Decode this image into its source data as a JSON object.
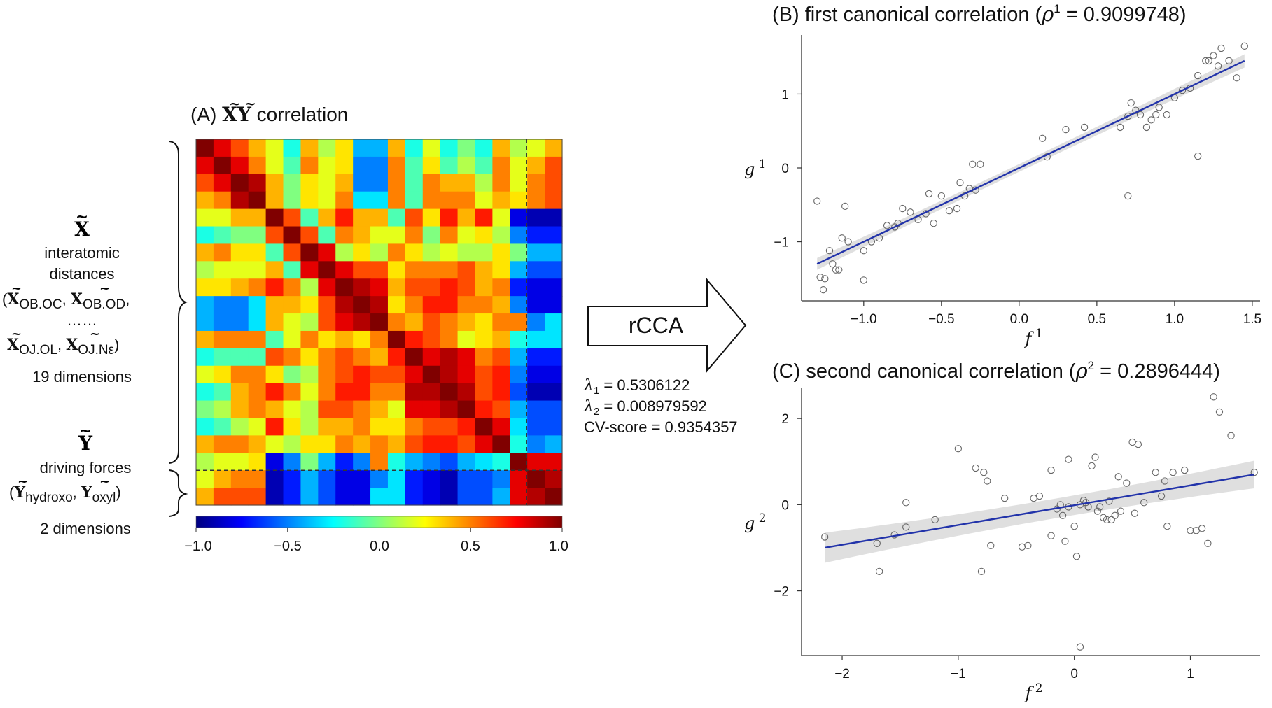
{
  "panel_a": {
    "title_prefix": "(A) ",
    "title_x": "X",
    "title_y": "Y",
    "title_suffix": " correlation",
    "x_block": {
      "symbol": "X",
      "line1": "interatomic",
      "line2": "distances",
      "l3_open": "(",
      "l3_x1": "X",
      "l3_sub1": "OB.OC",
      "l3_sep": ", ",
      "l3_x2": "X",
      "l3_sub2": "OB.OD",
      "l3_end": ",",
      "dots": "……",
      "l5_x1": "X",
      "l5_sub1": "OJ.OL",
      "l5_sep": ", ",
      "l5_x2": "X",
      "l5_sub2": "OJ.Nε",
      "l5_close": ")",
      "dims": "19 dimensions"
    },
    "y_block": {
      "symbol": "Y",
      "line1": "driving forces",
      "l2_open": "(",
      "l2_y1": "Y",
      "l2_sub1": "hydroxo",
      "l2_sep": ", ",
      "l2_y2": "Y",
      "l2_sub2": "oxyl",
      "l2_close": ")",
      "dims": "2 dimensions"
    },
    "colorbar_ticks": [
      "−1.0",
      "−0.5",
      "0.0",
      "0.5",
      "1.0"
    ]
  },
  "middle": {
    "arrow_label": "rCCA",
    "lambda1_sym": "λ",
    "lambda1_sub": "1",
    "lambda1_val": " = 0.5306122",
    "lambda2_sym": "λ",
    "lambda2_sub": "2",
    "lambda2_val": " = 0.008979592",
    "cv": "CV-score = 0.9354357"
  },
  "colors": {
    "fit_line": "#2233aa",
    "ci_band": "#d4d4d4",
    "points": "#666666",
    "axis": "#333333"
  },
  "chart_data": [
    {
      "type": "heatmap",
      "title": "(A) XY correlation",
      "rows": 21,
      "cols": 21,
      "divider_after": 19,
      "colormap": "jet",
      "colorbar_range": [
        -1.0,
        1.0
      ],
      "colorbar_ticks": [
        -1.0,
        -0.5,
        0.0,
        0.5,
        1.0
      ],
      "values": [
        [
          1.0,
          0.8,
          0.6,
          0.4,
          0.2,
          -0.2,
          0.4,
          0.1,
          0.3,
          -0.4,
          -0.4,
          0.4,
          -0.2,
          0.2,
          -0.2,
          0.0,
          -0.2,
          0.4,
          0.1,
          0.2,
          0.4
        ],
        [
          0.8,
          1.0,
          0.8,
          0.5,
          0.2,
          -0.1,
          0.5,
          0.2,
          0.3,
          -0.5,
          -0.5,
          0.5,
          -0.1,
          0.3,
          -0.1,
          0.1,
          -0.1,
          0.5,
          0.2,
          0.4,
          0.6
        ],
        [
          0.6,
          0.8,
          1.0,
          0.9,
          0.4,
          0.0,
          0.3,
          0.2,
          0.4,
          -0.5,
          -0.5,
          0.5,
          -0.1,
          0.5,
          0.4,
          0.4,
          0.1,
          0.5,
          0.2,
          0.5,
          0.6
        ],
        [
          0.4,
          0.5,
          0.9,
          1.0,
          0.4,
          0.0,
          0.3,
          0.2,
          0.5,
          -0.3,
          -0.3,
          0.5,
          -0.1,
          0.5,
          0.5,
          0.5,
          0.2,
          0.4,
          0.3,
          0.5,
          0.6
        ],
        [
          0.2,
          0.2,
          0.4,
          0.4,
          1.0,
          0.6,
          -0.1,
          0.4,
          0.7,
          0.4,
          0.4,
          -0.1,
          0.6,
          0.3,
          0.7,
          0.4,
          0.7,
          0.2,
          -0.8,
          -0.9,
          -0.9
        ],
        [
          -0.2,
          -0.1,
          0.0,
          0.0,
          0.6,
          1.0,
          0.6,
          -0.1,
          0.5,
          0.4,
          0.2,
          0.2,
          0.5,
          0.0,
          0.5,
          0.2,
          0.3,
          0.1,
          -0.5,
          -0.7,
          -0.7
        ],
        [
          0.4,
          0.5,
          0.3,
          0.3,
          -0.1,
          0.6,
          1.0,
          0.8,
          0.1,
          0.3,
          0.1,
          0.5,
          0.3,
          0.1,
          0.2,
          0.1,
          0.1,
          0.3,
          0.0,
          -0.4,
          -0.4
        ],
        [
          0.1,
          0.2,
          0.2,
          0.2,
          0.4,
          -0.1,
          0.8,
          1.0,
          0.8,
          0.6,
          0.6,
          0.3,
          0.5,
          0.5,
          0.5,
          0.6,
          0.4,
          0.3,
          -0.4,
          -0.6,
          -0.6
        ],
        [
          0.3,
          0.3,
          0.4,
          0.5,
          0.7,
          0.5,
          0.1,
          0.8,
          1.0,
          0.9,
          0.8,
          0.4,
          0.6,
          0.6,
          0.7,
          0.6,
          0.4,
          0.5,
          -0.7,
          -0.8,
          -0.8
        ],
        [
          -0.4,
          -0.5,
          -0.5,
          -0.3,
          0.4,
          0.4,
          0.3,
          0.6,
          0.9,
          1.0,
          0.9,
          0.3,
          0.5,
          0.7,
          0.7,
          0.5,
          0.5,
          0.4,
          -0.5,
          -0.8,
          -0.8
        ],
        [
          -0.4,
          -0.5,
          -0.5,
          -0.3,
          0.4,
          0.2,
          0.1,
          0.6,
          0.8,
          0.9,
          1.0,
          0.5,
          0.4,
          0.6,
          0.5,
          0.4,
          0.3,
          0.5,
          0.5,
          -0.5,
          -0.3
        ],
        [
          0.4,
          0.5,
          0.5,
          0.5,
          -0.1,
          0.2,
          0.5,
          0.3,
          0.4,
          0.3,
          0.5,
          1.0,
          0.7,
          0.6,
          0.5,
          0.2,
          0.3,
          0.4,
          -0.2,
          -0.3,
          -0.3
        ],
        [
          -0.2,
          -0.1,
          -0.1,
          -0.1,
          0.6,
          0.5,
          0.3,
          0.5,
          0.6,
          0.5,
          0.4,
          0.7,
          1.0,
          0.8,
          0.9,
          0.8,
          0.5,
          0.6,
          -0.4,
          -0.7,
          -0.7
        ],
        [
          0.2,
          0.3,
          0.5,
          0.5,
          0.3,
          0.0,
          0.1,
          0.5,
          0.6,
          0.7,
          0.6,
          0.6,
          0.8,
          1.0,
          0.9,
          0.8,
          0.6,
          0.7,
          -0.5,
          -0.8,
          -0.8
        ],
        [
          -0.2,
          -0.1,
          0.4,
          0.5,
          0.7,
          0.5,
          0.2,
          0.5,
          0.7,
          0.7,
          0.5,
          0.5,
          0.9,
          0.9,
          1.0,
          0.9,
          0.6,
          0.7,
          -0.6,
          -0.9,
          -0.9
        ],
        [
          0.0,
          0.1,
          0.4,
          0.5,
          0.4,
          0.2,
          0.1,
          0.6,
          0.6,
          0.5,
          0.4,
          0.2,
          0.8,
          0.8,
          0.9,
          1.0,
          0.7,
          0.6,
          -0.4,
          -0.6,
          -0.6
        ],
        [
          -0.2,
          -0.1,
          0.1,
          0.2,
          0.7,
          0.3,
          0.1,
          0.4,
          0.4,
          0.5,
          0.3,
          0.3,
          0.5,
          0.6,
          0.6,
          0.7,
          1.0,
          0.8,
          -0.3,
          -0.6,
          -0.6
        ],
        [
          0.4,
          0.5,
          0.5,
          0.4,
          0.2,
          0.1,
          0.3,
          0.3,
          0.5,
          0.4,
          0.5,
          0.4,
          0.6,
          0.7,
          0.7,
          0.6,
          0.8,
          1.0,
          -0.2,
          -0.5,
          -0.4
        ],
        [
          0.1,
          0.2,
          0.2,
          0.3,
          -0.8,
          -0.5,
          0.0,
          -0.4,
          -0.7,
          -0.5,
          0.5,
          -0.2,
          -0.4,
          -0.5,
          -0.6,
          -0.4,
          -0.3,
          -0.2,
          1.0,
          0.8,
          0.8
        ],
        [
          0.2,
          0.4,
          0.5,
          0.5,
          -0.9,
          -0.7,
          -0.4,
          -0.6,
          -0.8,
          -0.8,
          -0.5,
          -0.3,
          -0.7,
          -0.8,
          -0.9,
          -0.6,
          -0.6,
          -0.5,
          0.8,
          1.0,
          0.9
        ],
        [
          0.4,
          0.6,
          0.6,
          0.6,
          -0.9,
          -0.7,
          -0.4,
          -0.6,
          -0.8,
          -0.8,
          -0.3,
          -0.3,
          -0.7,
          -0.8,
          -0.9,
          -0.6,
          -0.6,
          -0.4,
          0.8,
          0.9,
          1.0
        ]
      ]
    },
    {
      "type": "scatter",
      "title": "(B) first canonical correlation (ρ¹ = 0.9099748)",
      "xlabel": "f¹",
      "ylabel": "g¹",
      "xlim": [
        -1.4,
        1.55
      ],
      "ylim": [
        -1.8,
        1.8
      ],
      "xticks": [
        -1.0,
        -0.5,
        0.0,
        0.5,
        1.0,
        1.5
      ],
      "yticks": [
        -1,
        0,
        1
      ],
      "fit": {
        "x0": -1.3,
        "y0": -1.3,
        "x1": 1.45,
        "y1": 1.45
      },
      "ci_halfwidth": [
        0.08,
        0.02,
        0.09
      ],
      "x": [
        -1.3,
        -1.28,
        -1.25,
        -1.26,
        -1.22,
        -1.2,
        -1.18,
        -1.16,
        -1.14,
        -1.12,
        -1.1,
        -1.0,
        -1.0,
        -0.95,
        -0.9,
        -0.85,
        -0.8,
        -0.78,
        -0.75,
        -0.7,
        -0.65,
        -0.6,
        -0.58,
        -0.55,
        -0.5,
        -0.45,
        -0.4,
        -0.38,
        -0.35,
        -0.32,
        -0.3,
        -0.28,
        -0.25,
        0.15,
        0.18,
        0.3,
        0.42,
        0.65,
        0.7,
        0.72,
        0.75,
        0.78,
        0.82,
        0.85,
        0.88,
        0.9,
        0.95,
        1.0,
        1.05,
        1.1,
        1.15,
        1.2,
        1.22,
        1.25,
        1.28,
        1.3,
        1.35,
        1.4,
        1.45,
        1.15,
        0.7
      ],
      "y": [
        -0.45,
        -1.48,
        -1.5,
        -1.65,
        -1.12,
        -1.3,
        -1.38,
        -1.38,
        -0.95,
        -0.52,
        -1.0,
        -1.12,
        -1.52,
        -1.0,
        -0.95,
        -0.78,
        -0.8,
        -0.75,
        -0.55,
        -0.6,
        -0.7,
        -0.62,
        -0.35,
        -0.75,
        -0.38,
        -0.58,
        -0.55,
        -0.2,
        -0.38,
        -0.28,
        0.05,
        -0.3,
        0.05,
        0.4,
        0.15,
        0.52,
        0.55,
        0.55,
        0.7,
        0.88,
        0.78,
        0.72,
        0.55,
        0.65,
        0.72,
        0.82,
        0.72,
        0.95,
        1.05,
        1.08,
        1.25,
        1.45,
        1.45,
        1.52,
        1.38,
        1.62,
        1.45,
        1.22,
        1.65,
        0.16,
        -0.38
      ]
    },
    {
      "type": "scatter",
      "title": "(C) second canonical correlation (ρ² = 0.2896444)",
      "xlabel": "f²",
      "ylabel": "g²",
      "xlim": [
        -2.35,
        1.6
      ],
      "ylim": [
        -3.5,
        2.7
      ],
      "xticks": [
        -2,
        -1,
        0,
        1
      ],
      "yticks": [
        -2,
        0,
        2
      ],
      "fit": {
        "x0": -2.15,
        "y0": -1.0,
        "x1": 1.55,
        "y1": 0.7
      },
      "ci_halfwidth": [
        0.35,
        0.12,
        0.32
      ],
      "x": [
        -2.15,
        -1.7,
        -1.68,
        -1.55,
        -1.45,
        -1.45,
        -1.2,
        -1.0,
        -0.85,
        -0.8,
        -0.78,
        -0.75,
        -0.72,
        -0.6,
        -0.45,
        -0.4,
        -0.35,
        -0.3,
        -0.2,
        -0.2,
        -0.15,
        -0.12,
        -0.1,
        -0.08,
        -0.05,
        -0.05,
        0.0,
        0.02,
        0.05,
        0.08,
        0.1,
        0.12,
        0.15,
        0.18,
        0.2,
        0.22,
        0.25,
        0.28,
        0.3,
        0.32,
        0.35,
        0.38,
        0.4,
        0.45,
        0.5,
        0.52,
        0.55,
        0.6,
        0.7,
        0.75,
        0.78,
        0.8,
        0.85,
        0.95,
        1.0,
        1.05,
        1.1,
        1.15,
        1.2,
        1.25,
        1.35,
        1.55,
        0.05
      ],
      "y": [
        -0.75,
        -0.9,
        -1.55,
        -0.7,
        0.05,
        -0.52,
        -0.35,
        1.3,
        0.85,
        -1.55,
        0.75,
        0.55,
        -0.95,
        0.15,
        -0.98,
        -0.95,
        0.15,
        0.2,
        -0.72,
        0.8,
        -0.1,
        0.0,
        -0.25,
        -0.85,
        -0.05,
        1.05,
        -0.5,
        -1.2,
        0.0,
        0.1,
        0.05,
        -0.05,
        0.9,
        1.1,
        -0.15,
        -0.05,
        -0.3,
        -0.35,
        0.08,
        -0.35,
        -0.25,
        0.65,
        -0.15,
        0.5,
        1.45,
        -0.2,
        1.4,
        0.05,
        0.75,
        0.2,
        0.55,
        -0.5,
        0.75,
        0.8,
        -0.6,
        -0.6,
        -0.55,
        -0.9,
        2.5,
        2.15,
        1.6,
        0.75,
        -3.3
      ]
    }
  ]
}
